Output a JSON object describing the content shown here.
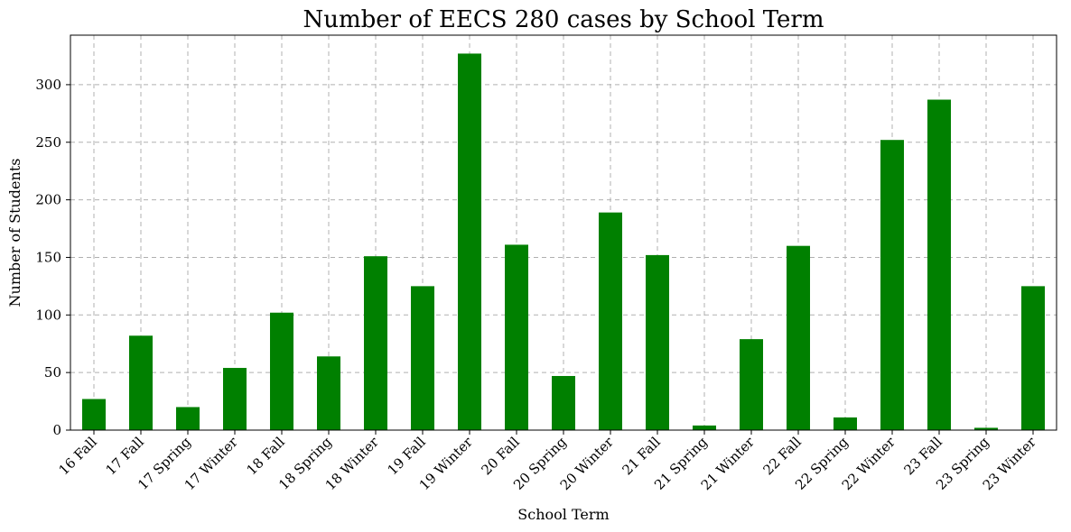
{
  "chart_data": {
    "type": "bar",
    "title": "Number of EECS 280 cases by School Term",
    "xlabel": "School Term",
    "ylabel": "Number of Students",
    "categories": [
      "16 Fall",
      "17 Fall",
      "17 Spring",
      "17 Winter",
      "18 Fall",
      "18 Spring",
      "18 Winter",
      "19 Fall",
      "19 Winter",
      "20 Fall",
      "20 Spring",
      "20 Winter",
      "21 Fall",
      "21 Spring",
      "21 Winter",
      "22 Fall",
      "22 Spring",
      "22 Winter",
      "23 Fall",
      "23 Spring",
      "23 Winter"
    ],
    "values": [
      27,
      82,
      20,
      54,
      102,
      64,
      151,
      125,
      327,
      161,
      47,
      189,
      152,
      4,
      79,
      160,
      11,
      252,
      287,
      2,
      125
    ],
    "ylim": [
      0,
      343
    ],
    "yticks": [
      0,
      50,
      100,
      150,
      200,
      250,
      300
    ],
    "grid": true,
    "bar_color": "#008000"
  }
}
